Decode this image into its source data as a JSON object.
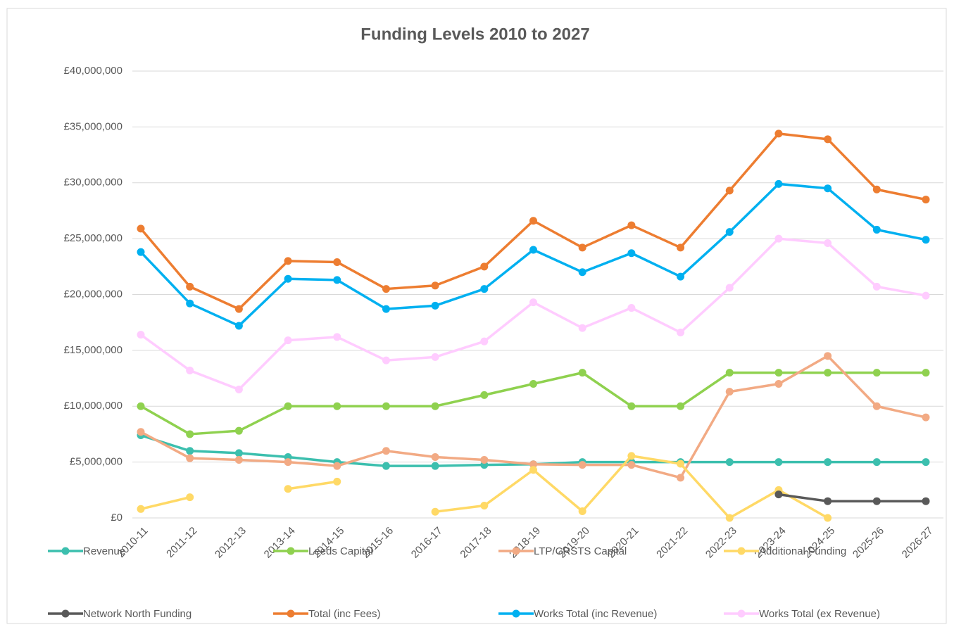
{
  "chart_data": {
    "type": "line",
    "title": "Funding Levels 2010 to 2027",
    "categories": [
      "2010-11",
      "2011-12",
      "2012-13",
      "2013-14",
      "2014-15",
      "2015-16",
      "2016-17",
      "2017-18",
      "2018-19",
      "2019-20",
      "2020-21",
      "2021-22",
      "2022-23",
      "2023-24",
      "2024-25",
      "2025-26",
      "2026-27"
    ],
    "series": [
      {
        "name": "Revenue",
        "color": "#3cbfae",
        "values": [
          7400000,
          6000000,
          5800000,
          5450000,
          5000000,
          4650000,
          4650000,
          4750000,
          4800000,
          5000000,
          5000000,
          5000000,
          5000000,
          5000000,
          5000000,
          5000000,
          5000000
        ]
      },
      {
        "name": "Leeds Capital",
        "color": "#8fd14f",
        "values": [
          10000000,
          7500000,
          7800000,
          10000000,
          10000000,
          10000000,
          10000000,
          11000000,
          12000000,
          13000000,
          10000000,
          10000000,
          13000000,
          13000000,
          13000000,
          13000000,
          13000000
        ]
      },
      {
        "name": "LTP/CRSTS Capital",
        "color": "#f2aa84",
        "values": [
          7700000,
          5350000,
          5200000,
          5000000,
          4650000,
          6000000,
          5450000,
          5200000,
          4800000,
          4750000,
          4750000,
          3600000,
          11300000,
          12000000,
          14500000,
          10000000,
          9000000
        ]
      },
      {
        "name": "Additional Funding",
        "color": "#ffd966",
        "values": [
          800000,
          1850000,
          null,
          2600000,
          3250000,
          null,
          550000,
          1100000,
          4300000,
          600000,
          5550000,
          4850000,
          0,
          2500000,
          0,
          null,
          null
        ]
      },
      {
        "name": "Network North Funding",
        "color": "#595959",
        "values": [
          null,
          null,
          null,
          null,
          null,
          null,
          null,
          null,
          null,
          null,
          null,
          null,
          null,
          2100000,
          1500000,
          1500000,
          1500000
        ]
      },
      {
        "name": "Total (inc Fees)",
        "color": "#ed7d31",
        "values": [
          25900000,
          20700000,
          18700000,
          23000000,
          22900000,
          20500000,
          20800000,
          22500000,
          26600000,
          24200000,
          26200000,
          24200000,
          29300000,
          34400000,
          33900000,
          29400000,
          28500000
        ]
      },
      {
        "name": "Works Total (inc Revenue)",
        "color": "#00b0f0",
        "values": [
          23800000,
          19200000,
          17200000,
          21400000,
          21300000,
          18700000,
          19000000,
          20500000,
          24000000,
          22000000,
          23700000,
          21600000,
          25600000,
          29900000,
          29500000,
          25800000,
          24900000
        ]
      },
      {
        "name": "Works Total (ex Revenue)",
        "color": "#ffccff",
        "values": [
          16400000,
          13200000,
          11500000,
          15900000,
          16200000,
          14100000,
          14400000,
          15800000,
          19300000,
          17000000,
          18800000,
          16600000,
          20600000,
          25000000,
          24600000,
          20700000,
          19900000
        ]
      }
    ],
    "ylim": [
      0,
      40000000
    ],
    "yticks": [
      {
        "value": 0,
        "label": "£0"
      },
      {
        "value": 5000000,
        "label": "£5,000,000"
      },
      {
        "value": 10000000,
        "label": "£10,000,000"
      },
      {
        "value": 15000000,
        "label": "£15,000,000"
      },
      {
        "value": 20000000,
        "label": "£20,000,000"
      },
      {
        "value": 25000000,
        "label": "£25,000,000"
      },
      {
        "value": 30000000,
        "label": "£30,000,000"
      },
      {
        "value": 35000000,
        "label": "£35,000,000"
      },
      {
        "value": 40000000,
        "label": "£40,000,000"
      }
    ],
    "grid": true,
    "legend": "bottom"
  }
}
